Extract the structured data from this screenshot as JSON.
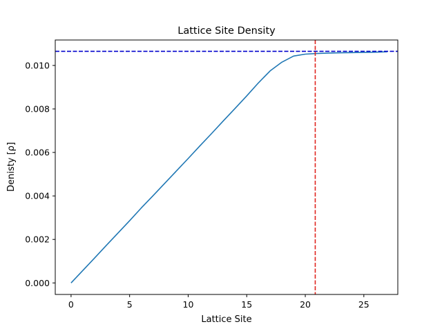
{
  "chart_data": {
    "type": "line",
    "title": "Lattice Site Density",
    "xlabel": "Lattice Site",
    "ylabel": "Denisty [ρ]",
    "xlim": [
      -1.35,
      27.9
    ],
    "ylim": [
      -0.00053,
      0.01117
    ],
    "xticks": [
      0,
      5,
      10,
      15,
      20,
      25
    ],
    "xtick_labels": [
      "0",
      "5",
      "10",
      "15",
      "20",
      "25"
    ],
    "yticks": [
      0.0,
      0.002,
      0.004,
      0.006,
      0.008,
      0.01
    ],
    "ytick_labels": [
      "0.000",
      "0.002",
      "0.004",
      "0.006",
      "0.008",
      "0.010"
    ],
    "grid": false,
    "series": [
      {
        "color": "#1f77b4",
        "x": [
          0,
          1,
          2,
          3,
          4,
          5,
          6,
          7,
          8,
          9,
          10,
          11,
          12,
          13,
          14,
          15,
          16,
          17,
          18,
          19,
          20,
          21,
          22,
          23,
          24,
          25,
          26,
          27
        ],
        "values": [
          0.0,
          0.00057,
          0.00114,
          0.00172,
          0.00229,
          0.00286,
          0.00345,
          0.00401,
          0.00458,
          0.00515,
          0.00572,
          0.0063,
          0.00687,
          0.00745,
          0.00802,
          0.0086,
          0.0092,
          0.00975,
          0.01015,
          0.01043,
          0.01052,
          0.01055,
          0.01057,
          0.01058,
          0.01059,
          0.0106,
          0.01061,
          0.01063
        ]
      }
    ],
    "reference_lines": [
      {
        "orientation": "horizontal",
        "value": 0.01065,
        "color": "#0000cc",
        "style": "dashed"
      },
      {
        "orientation": "vertical",
        "value": 20.85,
        "color": "#e0241e",
        "style": "dashed"
      }
    ]
  }
}
